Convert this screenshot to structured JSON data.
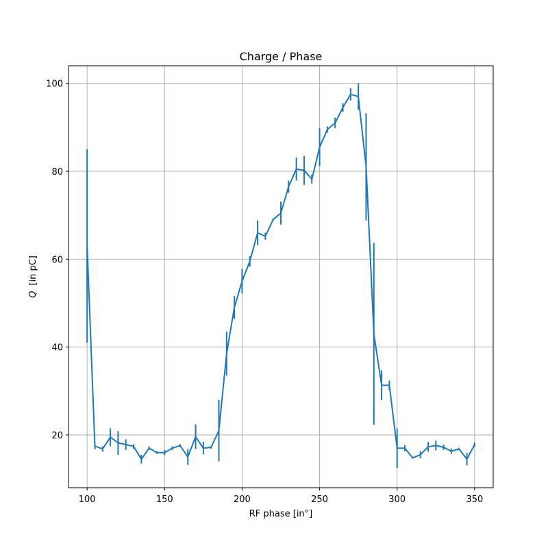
{
  "chart_data": {
    "type": "line",
    "title": "Charge / Phase",
    "xlabel": "RF phase [in°]",
    "ylabel_symbol": "Q",
    "ylabel_unit": "[in   pC]",
    "xlim": [
      88,
      362
    ],
    "ylim": [
      8,
      104
    ],
    "xticks": [
      100,
      150,
      200,
      250,
      300,
      350
    ],
    "yticks": [
      20,
      40,
      60,
      80,
      100
    ],
    "grid": true,
    "series": [
      {
        "color": "#1f77b4",
        "x": [
          100,
          105,
          110,
          115,
          120,
          125,
          130,
          135,
          140,
          145,
          150,
          155,
          160,
          165,
          170,
          175,
          180,
          185,
          190,
          195,
          200,
          205,
          210,
          215,
          220,
          225,
          230,
          235,
          240,
          245,
          250,
          255,
          260,
          265,
          270,
          275,
          280,
          285,
          290,
          295,
          300,
          305,
          310,
          315,
          320,
          325,
          330,
          335,
          340,
          345,
          350
        ],
        "y": [
          63,
          17.5,
          16.8,
          19.5,
          18.2,
          17.8,
          17.4,
          14.5,
          17,
          16,
          16,
          17,
          17.6,
          15,
          19.6,
          17,
          17.2,
          21,
          38.5,
          49,
          55,
          59.5,
          66,
          65.2,
          69,
          70.5,
          76.5,
          80.5,
          80.2,
          78.2,
          85.5,
          89.5,
          91,
          94.5,
          97.5,
          97,
          81,
          43,
          31.3,
          31.3,
          17,
          17,
          14.8,
          15.5,
          17.3,
          17.6,
          17.2,
          16.3,
          16.8,
          14.5,
          17.8
        ],
        "yerr": [
          22,
          0.8,
          0.6,
          2,
          2.7,
          1.2,
          0.5,
          1,
          0.4,
          0.3,
          0.6,
          0.4,
          0.3,
          1.8,
          2.8,
          1.4,
          0.3,
          7,
          5,
          2.6,
          2.8,
          1.2,
          2.8,
          0.8,
          0.3,
          2.6,
          1.4,
          2.6,
          3.3,
          1,
          4.3,
          0.7,
          1.2,
          1,
          1.4,
          3,
          12.2,
          20.7,
          3.4,
          1.1,
          4.5,
          0.7,
          0.2,
          0.8,
          1.1,
          1.1,
          0.6,
          0.6,
          0.3,
          1.4,
          0.5
        ]
      }
    ]
  }
}
